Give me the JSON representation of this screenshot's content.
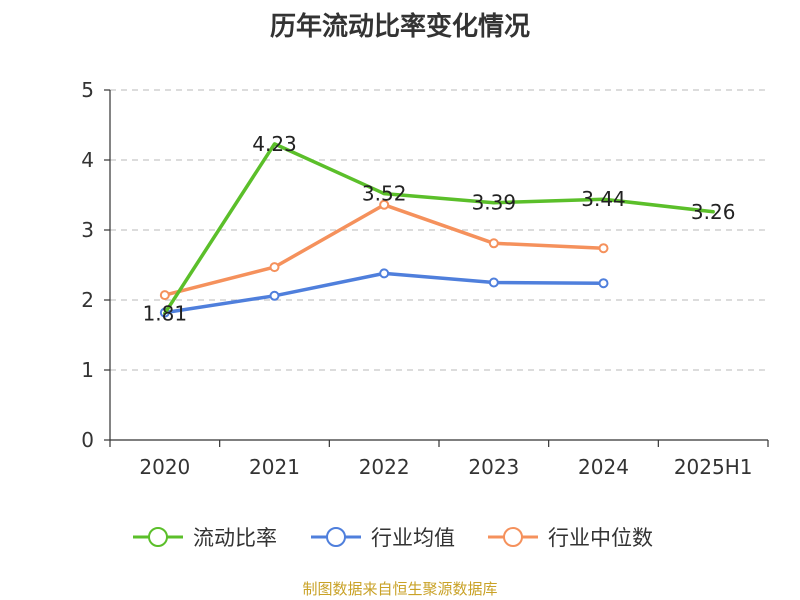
{
  "chart_data": {
    "type": "line",
    "title": "历年流动比率变化情况",
    "categories": [
      "2020",
      "2021",
      "2022",
      "2023",
      "2024",
      "2025H1"
    ],
    "ylim": [
      0,
      5
    ],
    "yticks": [
      "0",
      "1",
      "2",
      "3",
      "4",
      "5"
    ],
    "grid": true,
    "legend_position": "bottom",
    "series": [
      {
        "name": "流动比率",
        "color": "#5bbf2a",
        "values": [
          1.81,
          4.23,
          3.52,
          3.39,
          3.44,
          3.26
        ],
        "labels": [
          "1.81",
          "4.23",
          "3.52",
          "3.39",
          "3.44",
          "3.26"
        ],
        "markers": false
      },
      {
        "name": "行业均值",
        "color": "#4f7fdc",
        "values": [
          1.82,
          2.06,
          2.38,
          2.25,
          2.24,
          null
        ],
        "markers": true
      },
      {
        "name": "行业中位数",
        "color": "#f5915c",
        "values": [
          2.07,
          2.47,
          3.36,
          2.81,
          2.74,
          null
        ],
        "markers": true
      }
    ]
  },
  "source_note": "制图数据来自恒生聚源数据库"
}
